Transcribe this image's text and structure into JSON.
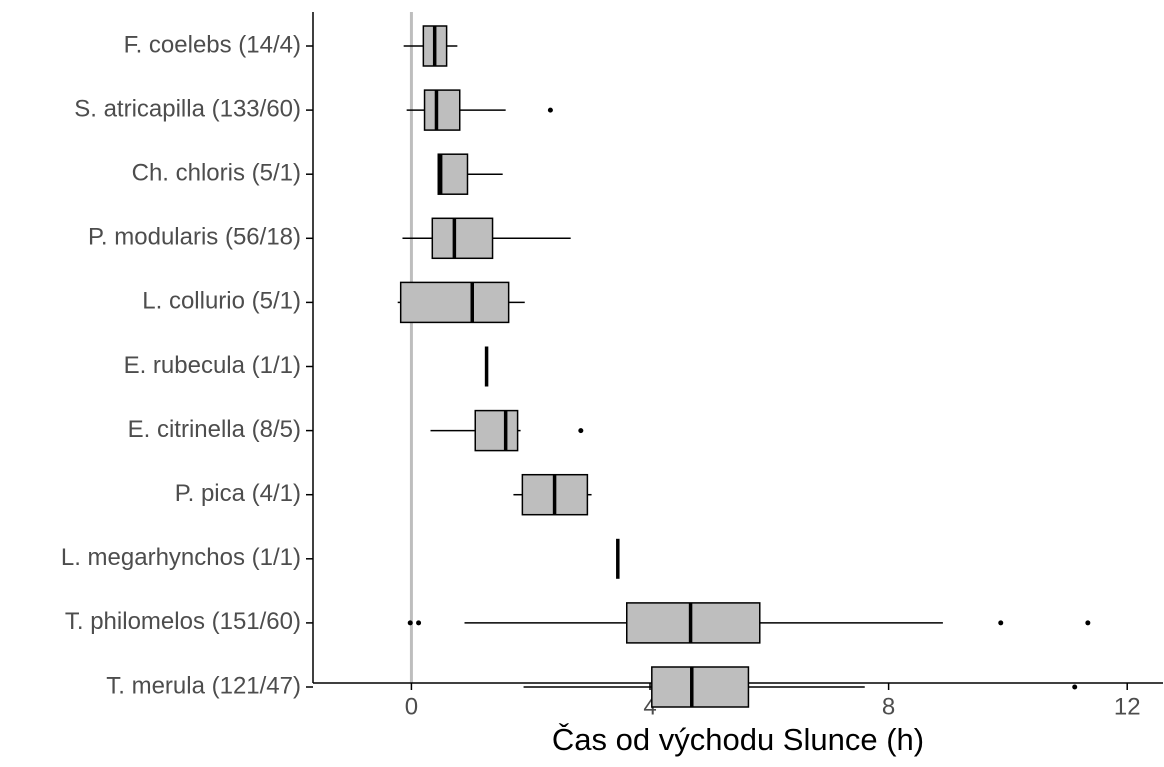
{
  "chart_data": {
    "type": "box",
    "x_label": "Čas od východu Slunce (h)",
    "categories": [
      "F. coelebs (14/4)",
      "S. atricapilla (133/60)",
      "Ch. chloris (5/1)",
      "P. modularis (56/18)",
      "L. collurio (5/1)",
      "E. rubecula (1/1)",
      "E. citrinella (8/5)",
      "P. pica (4/1)",
      "L. megarhynchos (1/1)",
      "T. philomelos (151/60)",
      "T. merula (121/47)"
    ],
    "boxes": [
      {
        "low": -0.13,
        "q1": 0.2,
        "median": 0.39,
        "q3": 0.59,
        "high": 0.77,
        "outliers": []
      },
      {
        "low": -0.08,
        "q1": 0.22,
        "median": 0.42,
        "q3": 0.81,
        "high": 1.58,
        "outliers": [
          2.33
        ]
      },
      {
        "low": 0.44,
        "q1": 0.45,
        "median": 0.49,
        "q3": 0.94,
        "high": 1.53,
        "outliers": []
      },
      {
        "low": -0.15,
        "q1": 0.35,
        "median": 0.72,
        "q3": 1.36,
        "high": 2.67,
        "outliers": []
      },
      {
        "low": -0.23,
        "q1": -0.18,
        "median": 1.02,
        "q3": 1.63,
        "high": 1.9,
        "outliers": []
      },
      {
        "low": 1.26,
        "q1": 1.26,
        "median": 1.26,
        "q3": 1.26,
        "high": 1.26,
        "outliers": []
      },
      {
        "low": 0.32,
        "q1": 1.07,
        "median": 1.58,
        "q3": 1.78,
        "high": 1.83,
        "outliers": [
          2.84
        ]
      },
      {
        "low": 1.71,
        "q1": 1.86,
        "median": 2.4,
        "q3": 2.95,
        "high": 3.02,
        "outliers": []
      },
      {
        "low": 3.46,
        "q1": 3.46,
        "median": 3.46,
        "q3": 3.46,
        "high": 3.46,
        "outliers": []
      },
      {
        "low": 0.89,
        "q1": 3.61,
        "median": 4.68,
        "q3": 5.84,
        "high": 8.91,
        "outliers": [
          -0.02,
          0.12,
          9.88,
          11.34
        ]
      },
      {
        "low": 1.88,
        "q1": 4.03,
        "median": 4.7,
        "q3": 5.65,
        "high": 7.6,
        "outliers": [
          11.12
        ]
      }
    ],
    "color": "#bebebe",
    "vline": {
      "value": 0,
      "color": "#bebebe"
    },
    "xlim": [
      -1.65,
      12.6
    ],
    "xticks": [
      0,
      4,
      8,
      12
    ]
  }
}
